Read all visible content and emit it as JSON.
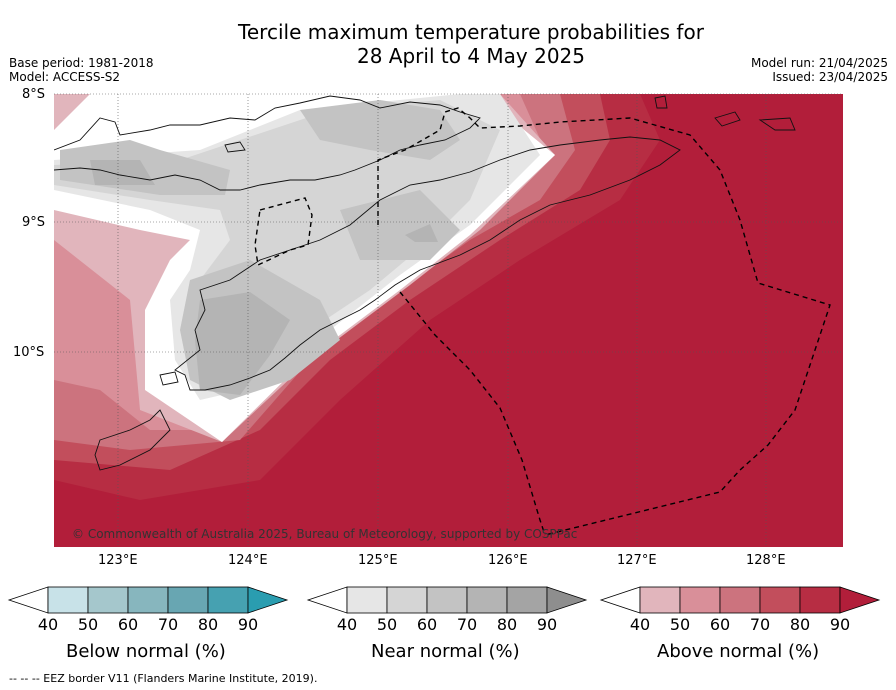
{
  "title_line1": "Tercile maximum temperature probabilities for",
  "title_line2": "28 April to 4 May 2025",
  "base_period": "Base period: 1981-2018",
  "model": "Model: ACCESS-S2",
  "model_run": "Model run: 21/04/2025",
  "issued": "Issued: 23/04/2025",
  "lat_labels": [
    "8°S",
    "9°S",
    "10°S"
  ],
  "lon_labels": [
    "123°E",
    "124°E",
    "125°E",
    "126°E",
    "127°E",
    "128°E"
  ],
  "copyright": "© Commonwealth of Australia 2025, Bureau of Meteorology, supported by COSPPac",
  "colorbars": {
    "below": {
      "label": "Below normal (%)",
      "ticks": [
        "40",
        "50",
        "60",
        "70",
        "80",
        "90"
      ],
      "colors": [
        "#ffffff",
        "#c8e2e8",
        "#a5c7cc",
        "#87b6be",
        "#68a6b2",
        "#46a1b1",
        "#2a9db0"
      ]
    },
    "near": {
      "label": "Near normal (%)",
      "ticks": [
        "40",
        "50",
        "60",
        "70",
        "80",
        "90"
      ],
      "colors": [
        "#ffffff",
        "#e6e6e6",
        "#d5d5d5",
        "#c3c3c3",
        "#b4b4b4",
        "#a4a4a4",
        "#8e8e8e"
      ]
    },
    "above": {
      "label": "Above normal (%)",
      "ticks": [
        "40",
        "50",
        "60",
        "70",
        "80",
        "90"
      ],
      "colors": [
        "#ffffff",
        "#e1b5bc",
        "#d98f99",
        "#cc737e",
        "#c24e5c",
        "#b72d43",
        "#b21e3a"
      ]
    }
  },
  "footer": "--  --  -- EEZ border V11 (Flanders Marine Institute, 2019)."
}
